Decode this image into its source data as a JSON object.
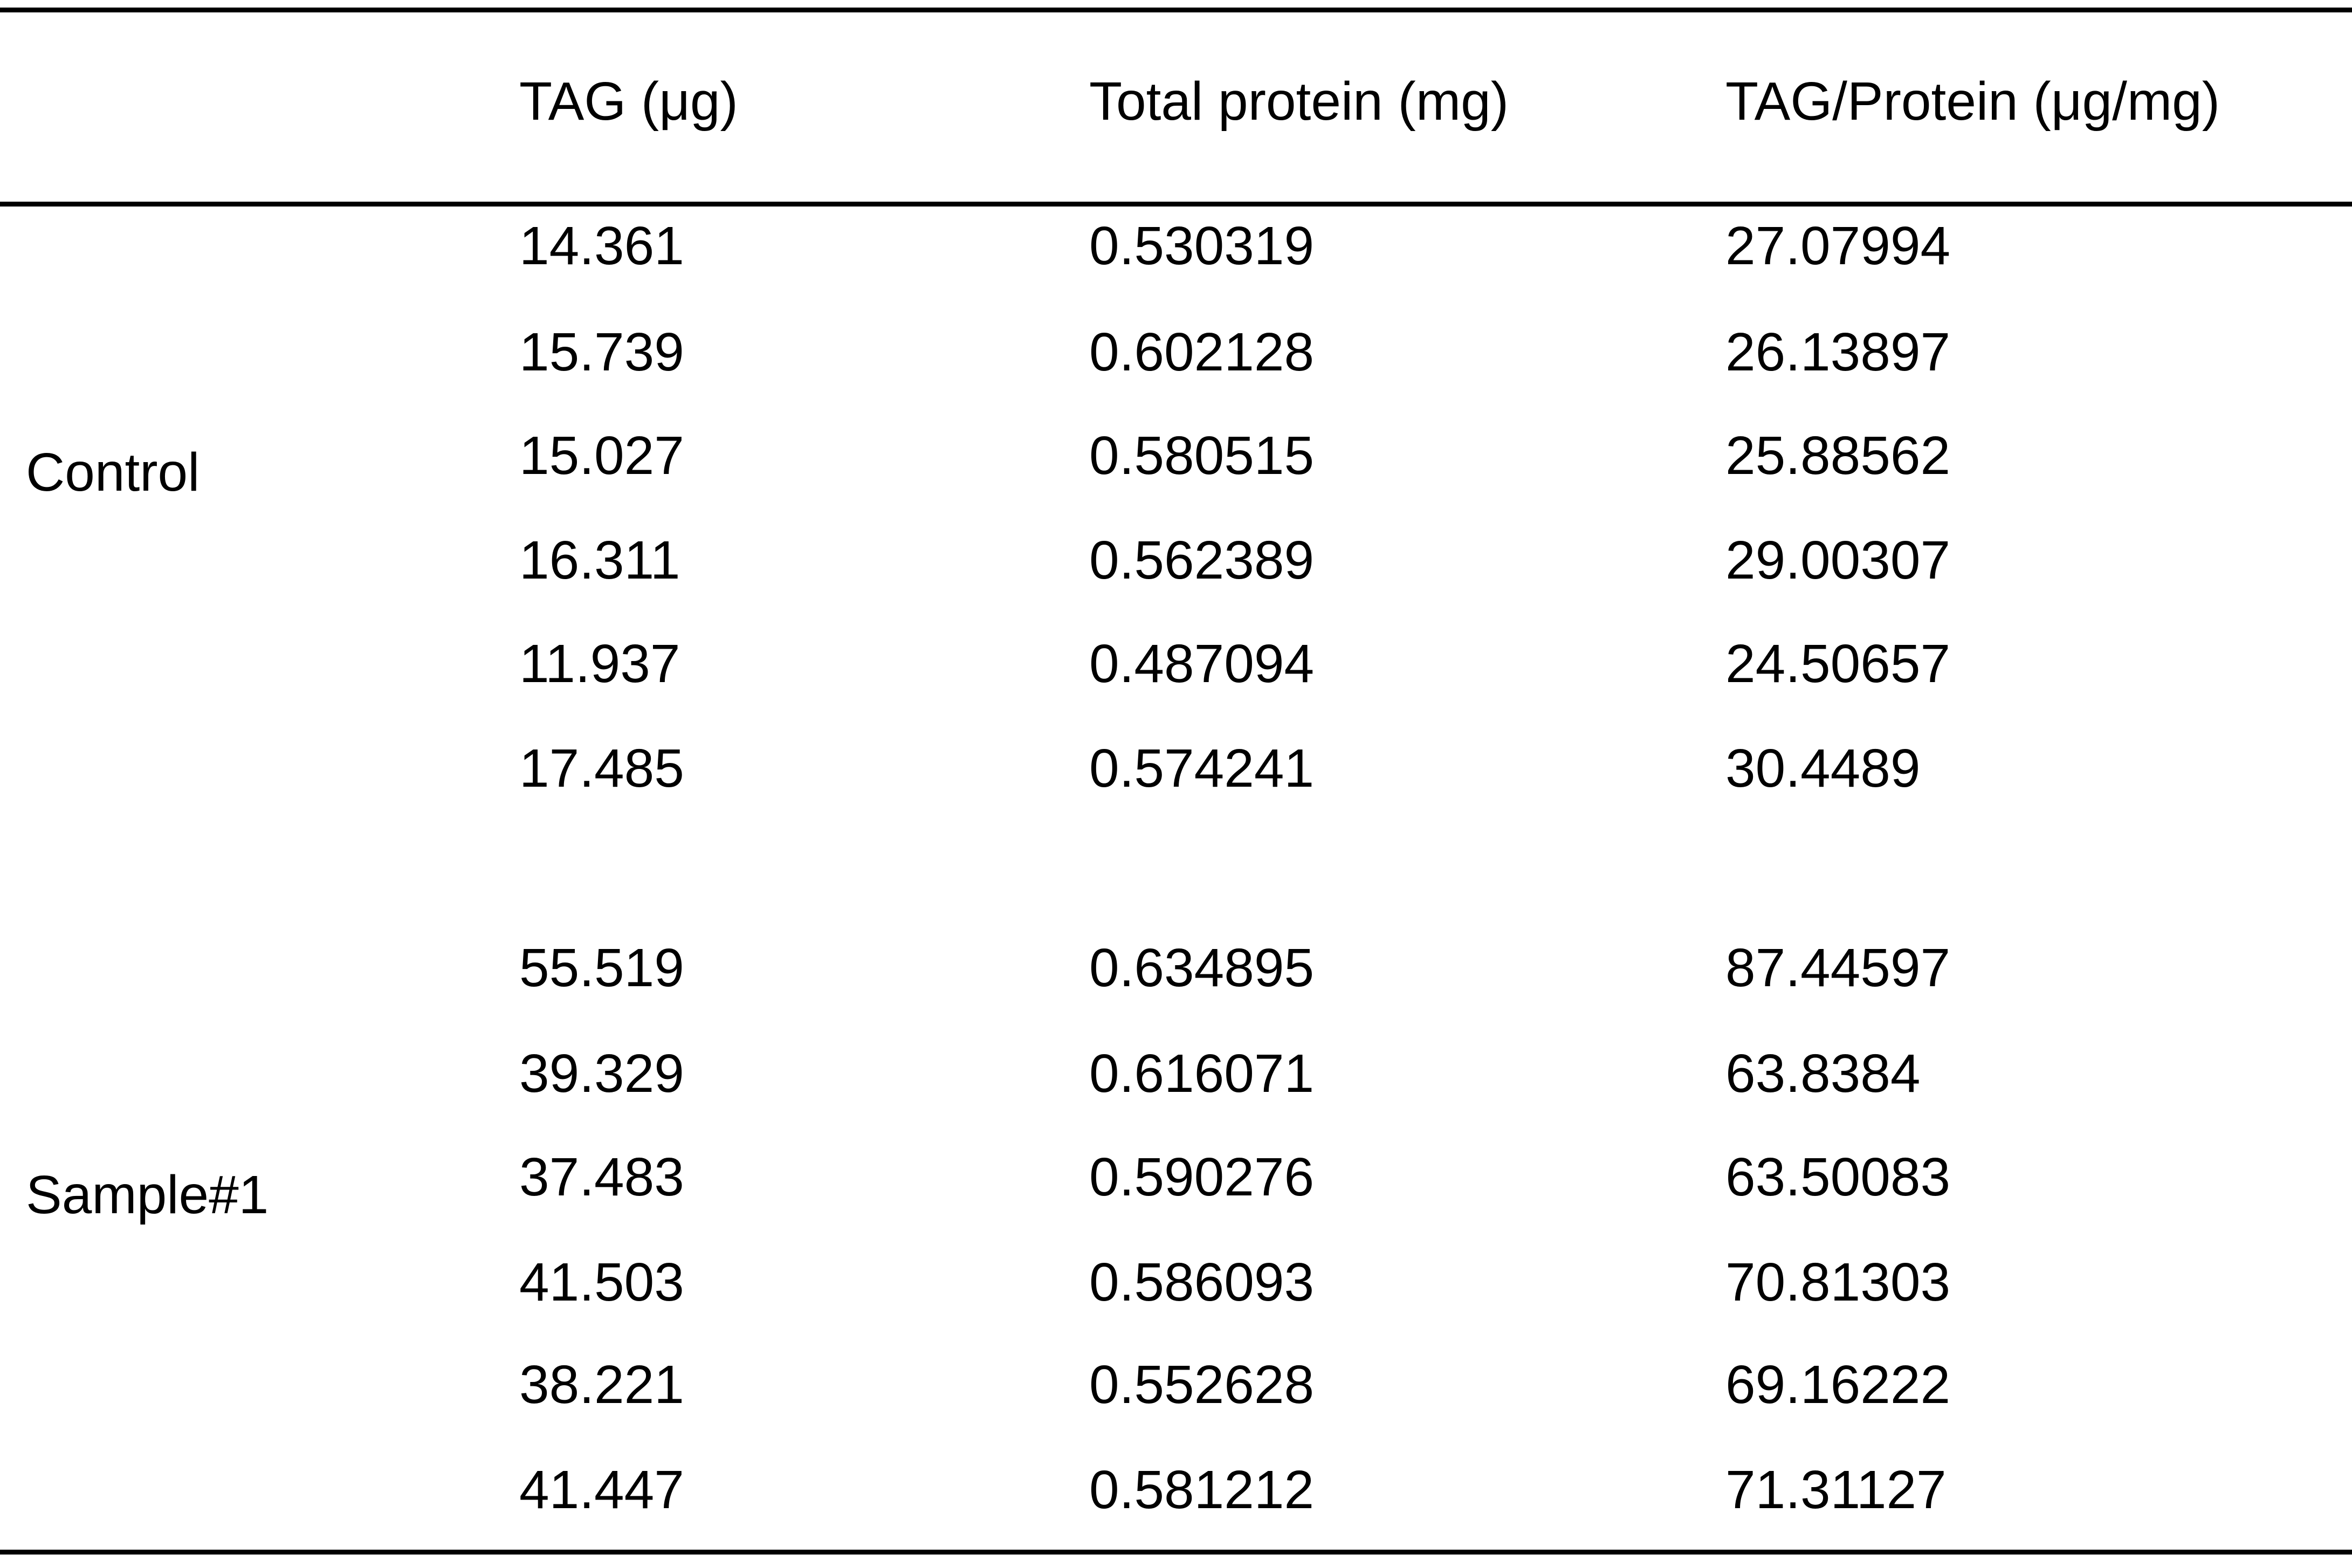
{
  "table": {
    "headers": [
      "",
      "TAG (μg)",
      "Total protein (mg)",
      "TAG/Protein (μg/mg)"
    ],
    "groups": [
      {
        "label": "Control",
        "rows": [
          [
            "14.361",
            "0.530319",
            "27.07994"
          ],
          [
            "15.739",
            "0.602128",
            "26.13897"
          ],
          [
            "15.027",
            "0.580515",
            "25.88562"
          ],
          [
            "16.311",
            "0.562389",
            "29.00307"
          ],
          [
            "11.937",
            "0.487094",
            "24.50657"
          ],
          [
            "17.485",
            "0.574241",
            "30.4489"
          ]
        ]
      },
      {
        "label": "Sample#1",
        "rows": [
          [
            "55.519",
            "0.634895",
            "87.44597"
          ],
          [
            "39.329",
            "0.616071",
            "63.8384"
          ],
          [
            "37.483",
            "0.590276",
            "63.50083"
          ],
          [
            "41.503",
            "0.586093",
            "70.81303"
          ],
          [
            "38.221",
            "0.552628",
            "69.16222"
          ],
          [
            "41.447",
            "0.581212",
            "71.31127"
          ]
        ]
      }
    ]
  }
}
